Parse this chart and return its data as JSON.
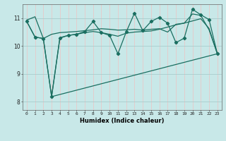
{
  "xlabel": "Humidex (Indice chaleur)",
  "bg_color": "#c8e8e8",
  "grid_color_v": "#e8c8c8",
  "grid_color_h": "#a8cccc",
  "line_color": "#1a6e60",
  "xlim": [
    -0.5,
    23.5
  ],
  "ylim": [
    7.7,
    11.5
  ],
  "yticks": [
    8,
    9,
    10,
    11
  ],
  "xticks": [
    0,
    1,
    2,
    3,
    4,
    5,
    6,
    7,
    8,
    9,
    10,
    11,
    12,
    13,
    14,
    15,
    16,
    17,
    18,
    19,
    20,
    21,
    22,
    23
  ],
  "line1": {
    "x": [
      0,
      1,
      2,
      3,
      4,
      5,
      6,
      7,
      8,
      9,
      10,
      11,
      12,
      13,
      14,
      15,
      16,
      17,
      18,
      19,
      20,
      21,
      22,
      23
    ],
    "y": [
      10.93,
      11.05,
      10.27,
      10.42,
      10.48,
      10.5,
      10.52,
      10.55,
      10.58,
      10.62,
      10.6,
      10.57,
      10.58,
      10.6,
      10.57,
      10.6,
      10.62,
      10.5,
      10.78,
      10.82,
      11.15,
      11.1,
      10.58,
      9.72
    ]
  },
  "line2_markers": {
    "x": [
      0,
      1,
      2,
      3,
      4,
      5,
      6,
      7,
      8,
      9,
      10,
      11,
      12,
      13,
      14,
      15,
      16,
      17,
      18,
      19,
      20,
      21,
      22,
      23
    ],
    "y": [
      10.88,
      10.32,
      10.27,
      8.18,
      10.28,
      10.38,
      10.42,
      10.52,
      10.88,
      10.48,
      10.38,
      9.72,
      10.5,
      11.18,
      10.55,
      10.88,
      11.03,
      10.82,
      10.12,
      10.28,
      11.32,
      11.12,
      10.95,
      9.72
    ]
  },
  "line3": {
    "x": [
      0,
      1,
      2,
      3,
      4,
      5,
      6,
      7,
      8,
      9,
      10,
      11,
      12,
      13,
      14,
      15,
      16,
      17,
      18,
      19,
      20,
      21,
      22,
      23
    ],
    "y": [
      10.88,
      10.32,
      10.27,
      8.18,
      10.3,
      10.38,
      10.42,
      10.48,
      10.52,
      10.48,
      10.42,
      10.35,
      10.46,
      10.5,
      10.52,
      10.54,
      10.6,
      10.68,
      10.76,
      10.82,
      10.9,
      10.98,
      10.63,
      9.72
    ]
  },
  "line4": {
    "x": [
      3,
      23
    ],
    "y": [
      8.18,
      9.72
    ]
  }
}
